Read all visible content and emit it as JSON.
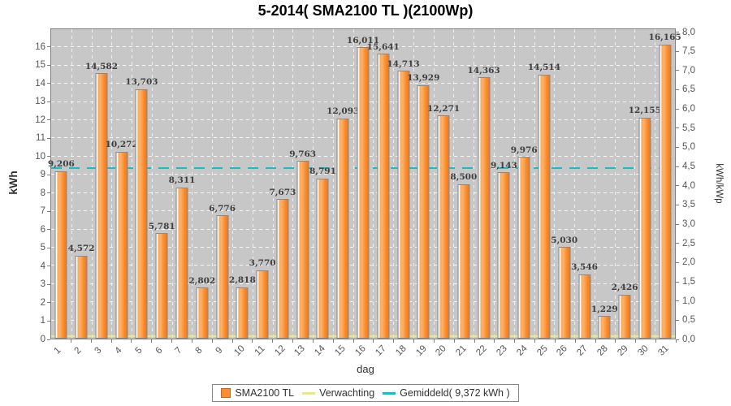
{
  "title": "5-2014( SMA2100 TL )(2100Wp)",
  "axis_labels": {
    "x": "dag",
    "y_left": "kWh",
    "y_right": "kWh/kWp"
  },
  "legend": [
    {
      "label": "SMA2100 TL",
      "swatch": "square",
      "color": "#fb8c33"
    },
    {
      "label": "Verwachting",
      "swatch": "line",
      "color": "#e9e97e"
    },
    {
      "label": "Gemiddeld( 9,372 kWh )",
      "swatch": "line",
      "color": "#00c8c8"
    }
  ],
  "chart_data": {
    "type": "bar",
    "title": "5-2014( SMA2100 TL )(2100Wp)",
    "xlabel": "dag",
    "ylabel": "kWh",
    "ylabel_right": "kWh/kWp",
    "categories": [
      1,
      2,
      3,
      4,
      5,
      6,
      7,
      8,
      9,
      10,
      11,
      12,
      13,
      14,
      15,
      16,
      17,
      18,
      19,
      20,
      21,
      22,
      23,
      24,
      25,
      26,
      27,
      28,
      29,
      30,
      31
    ],
    "series": [
      {
        "name": "SMA2100 TL",
        "values": [
          9.206,
          4.572,
          14.582,
          10.272,
          13.703,
          5.781,
          8.311,
          2.802,
          6.776,
          2.818,
          3.77,
          7.673,
          9.763,
          8.791,
          12.093,
          16.011,
          15.641,
          14.713,
          13.929,
          12.271,
          8.5,
          14.363,
          9.143,
          9.976,
          14.514,
          5.03,
          3.546,
          1.229,
          2.426,
          12.155,
          16.165
        ]
      }
    ],
    "value_labels": [
      "9,206",
      "4,572",
      "14,582",
      "10,272",
      "13,703",
      "5,781",
      "8,311",
      "2,802",
      "6,776",
      "2,818",
      "3,770",
      "7,673",
      "9,763",
      "8,791",
      "12,093",
      "16,011",
      "15,641",
      "14,713",
      "13,929",
      "12,271",
      "8,500",
      "14,363",
      "9,143",
      "9,976",
      "14,514",
      "5,030",
      "3,546",
      "1,229",
      "2,426",
      "12,155",
      "16,165"
    ],
    "left_axis": {
      "min": 0,
      "max_visible_tick": 16,
      "scale_top": 17,
      "tick_step": 1,
      "ticks": [
        "0",
        "1",
        "2",
        "3",
        "4",
        "5",
        "6",
        "7",
        "8",
        "9",
        "10",
        "11",
        "12",
        "13",
        "14",
        "15",
        "16"
      ]
    },
    "right_axis": {
      "min": 0,
      "max": 8,
      "tick_step": 0.5,
      "kwh_per_unit": 2.1,
      "ticks": [
        "0,0",
        "0,5",
        "1,0",
        "1,5",
        "2,0",
        "2,5",
        "3,0",
        "3,5",
        "4,0",
        "4,5",
        "5,0",
        "5,5",
        "6,0",
        "6,5",
        "7,0",
        "7,5",
        "8,0"
      ]
    },
    "reference_lines": [
      {
        "name": "Gemiddeld",
        "label": "Gemiddeld( 9,372 kWh )",
        "value_kwh": 9.372,
        "color": "#00c8c8",
        "style": "dashed"
      },
      {
        "name": "Verwachting",
        "label": "Verwachting",
        "value_kwh": 0.12,
        "color": "#e9e97e",
        "style": "solid"
      }
    ],
    "grid": true,
    "legend_position": "bottom",
    "plot_background": "#c7c7c7",
    "bar_color": "#f98c2e"
  }
}
